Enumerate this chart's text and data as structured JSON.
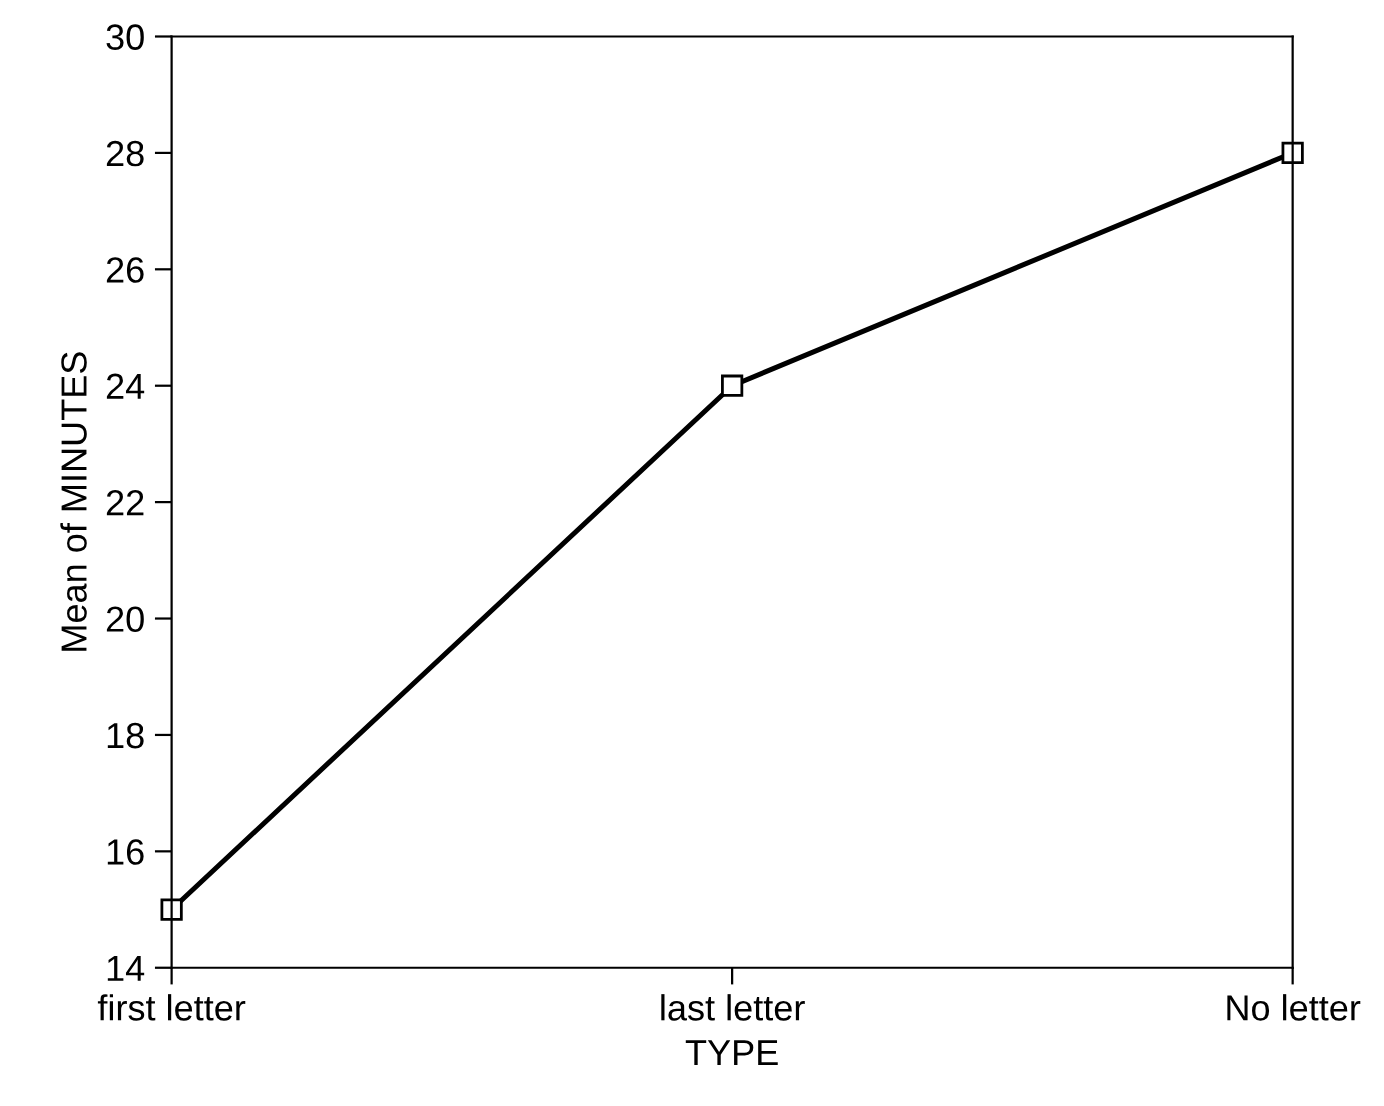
{
  "chart_data": {
    "type": "line",
    "xlabel": "TYPE",
    "ylabel": "Mean of MINUTES",
    "categories": [
      "first letter",
      "last letter",
      "No letter"
    ],
    "series": [
      {
        "color": "#000000",
        "values": [
          15,
          24,
          28
        ]
      }
    ],
    "ylim": [
      14,
      30
    ],
    "yticks": [
      14,
      16,
      18,
      20,
      22,
      24,
      26,
      28,
      30
    ],
    "grid": false,
    "legend": false,
    "marker": "square",
    "line_style": "solid"
  }
}
